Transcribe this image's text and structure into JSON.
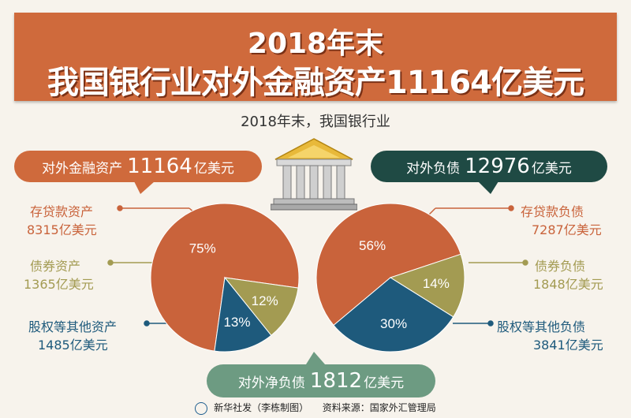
{
  "banner": {
    "line1": "2018年末",
    "line2": "我国银行业对外金融资产11164亿美元"
  },
  "subtitle": "2018年末，我国银行业",
  "assets_callout": {
    "label": "对外金融资产",
    "value": "11164",
    "unit": "亿美元"
  },
  "liabilities_callout": {
    "label": "对外负债",
    "value": "12976",
    "unit": "亿美元"
  },
  "net_callout": {
    "label": "对外净负债",
    "value": "1812",
    "unit": "亿美元"
  },
  "left_labels": [
    {
      "name": "存贷款资产",
      "amount": "8315亿美元"
    },
    {
      "name": "债券资产",
      "amount": "1365亿美元"
    },
    {
      "name": "股权等其他资产",
      "amount": "1485亿美元"
    }
  ],
  "right_labels": [
    {
      "name": "存贷款负债",
      "amount": "7287亿美元"
    },
    {
      "name": "债券负债",
      "amount": "1848亿美元"
    },
    {
      "name": "股权等其他负债",
      "amount": "3841亿美元"
    }
  ],
  "colors": {
    "loans": "#c9633b",
    "bonds": "#a39b52",
    "equity": "#1e5a7c",
    "assets_callout": "#cf6a3c",
    "liabilities_callout": "#1f4a44",
    "net_callout": "#6d9b82"
  },
  "footer": {
    "publisher": "新华社发（李栋制图）",
    "source": "资料来源：国家外汇管理局"
  },
  "chart_data": [
    {
      "type": "pie",
      "title": "对外金融资产",
      "categories": [
        "存贷款资产",
        "债券资产",
        "股权等其他资产"
      ],
      "values": [
        75,
        12,
        13
      ],
      "labels": [
        "75%",
        "12%",
        "13%"
      ],
      "amounts": [
        8315,
        1365,
        1485
      ]
    },
    {
      "type": "pie",
      "title": "对外负债",
      "categories": [
        "存贷款负债",
        "债券负债",
        "股权等其他负债"
      ],
      "values": [
        56,
        14,
        30
      ],
      "labels": [
        "56%",
        "14%",
        "30%"
      ],
      "amounts": [
        7287,
        1848,
        3841
      ]
    }
  ]
}
